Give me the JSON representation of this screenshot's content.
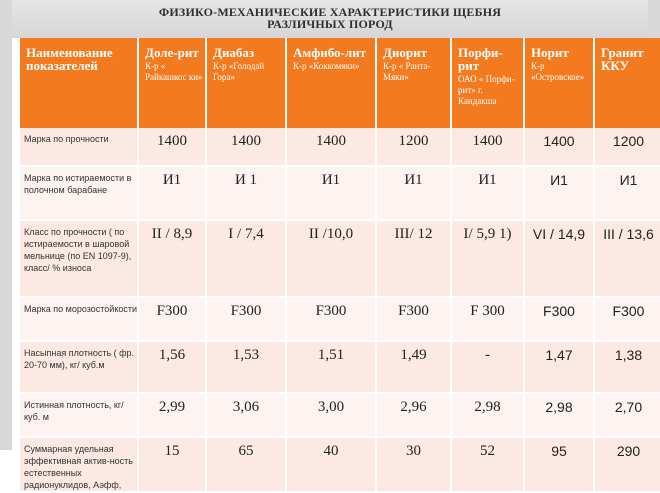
{
  "title": {
    "line1": "ФИЗИКО-МЕХАНИЧЕСКИЕ ХАРАКТЕРИСТИКИ ЩЕБНЯ",
    "line2": "РАЗЛИЧНЫХ ПОРОД"
  },
  "table": {
    "header_first": "Наименование показателей",
    "columns": [
      {
        "main": "Доле-рит",
        "sub": "К-р « Райкашкос ки»"
      },
      {
        "main": "Диабаз",
        "sub": "К-р «Голодай Гора»"
      },
      {
        "main": "Амфибо-лит",
        "sub": "К-р «Коккомяки»"
      },
      {
        "main": "Диорит",
        "sub": "К-р « Ранта-Мяки»"
      },
      {
        "main": "Порфи-рит",
        "sub": "ОАО « Порфи-рит» г. Кандакша"
      },
      {
        "main": "Норит",
        "sub": "К-р «Островское»"
      },
      {
        "main": "Гранит ККУ",
        "sub": ""
      }
    ],
    "rows": [
      {
        "label": "Марка по прочности",
        "values": [
          "1400",
          "1400",
          "1400",
          "1200",
          "1400",
          "1400",
          "1200"
        ]
      },
      {
        "label": "Марка по истираемости в полочном барабане",
        "values": [
          "И1",
          "И 1",
          "И1",
          "И1",
          "И1",
          "И1",
          "И1"
        ]
      },
      {
        "label": "Класс по прочности ( по истираемости в шаровой мельнице (по EN 1097-9), класс/ % износа",
        "values": [
          "II / 8,9",
          "I / 7,4",
          "II /10,0",
          "III/ 12",
          "I/ 5,9",
          "VI / 14,9",
          "III / 13,6"
        ],
        "note": "1)"
      },
      {
        "label": "Марка по морозостойкости",
        "values": [
          "F300",
          "F300",
          "F300",
          "F300",
          "F 300",
          "F300",
          "F300"
        ]
      },
      {
        "label": "Насыпная плотность ( фр. 20-70 мм), кг/ куб.м",
        "values": [
          "1,56",
          "1,53",
          "1,51",
          "1,49",
          "-",
          "1,47",
          "1,38"
        ]
      },
      {
        "label": "Истинная плотность, кг/куб. м",
        "values": [
          "2,99",
          "3,06",
          "3,00",
          "2,96",
          "2,98",
          "2,98",
          "2,70"
        ]
      },
      {
        "label": "Суммарная удельная эффективная актив-ность естественных радионуклидов, Аэфф,",
        "values": [
          "15",
          "65",
          "40",
          "30",
          "52",
          "95",
          "290"
        ]
      }
    ]
  }
}
